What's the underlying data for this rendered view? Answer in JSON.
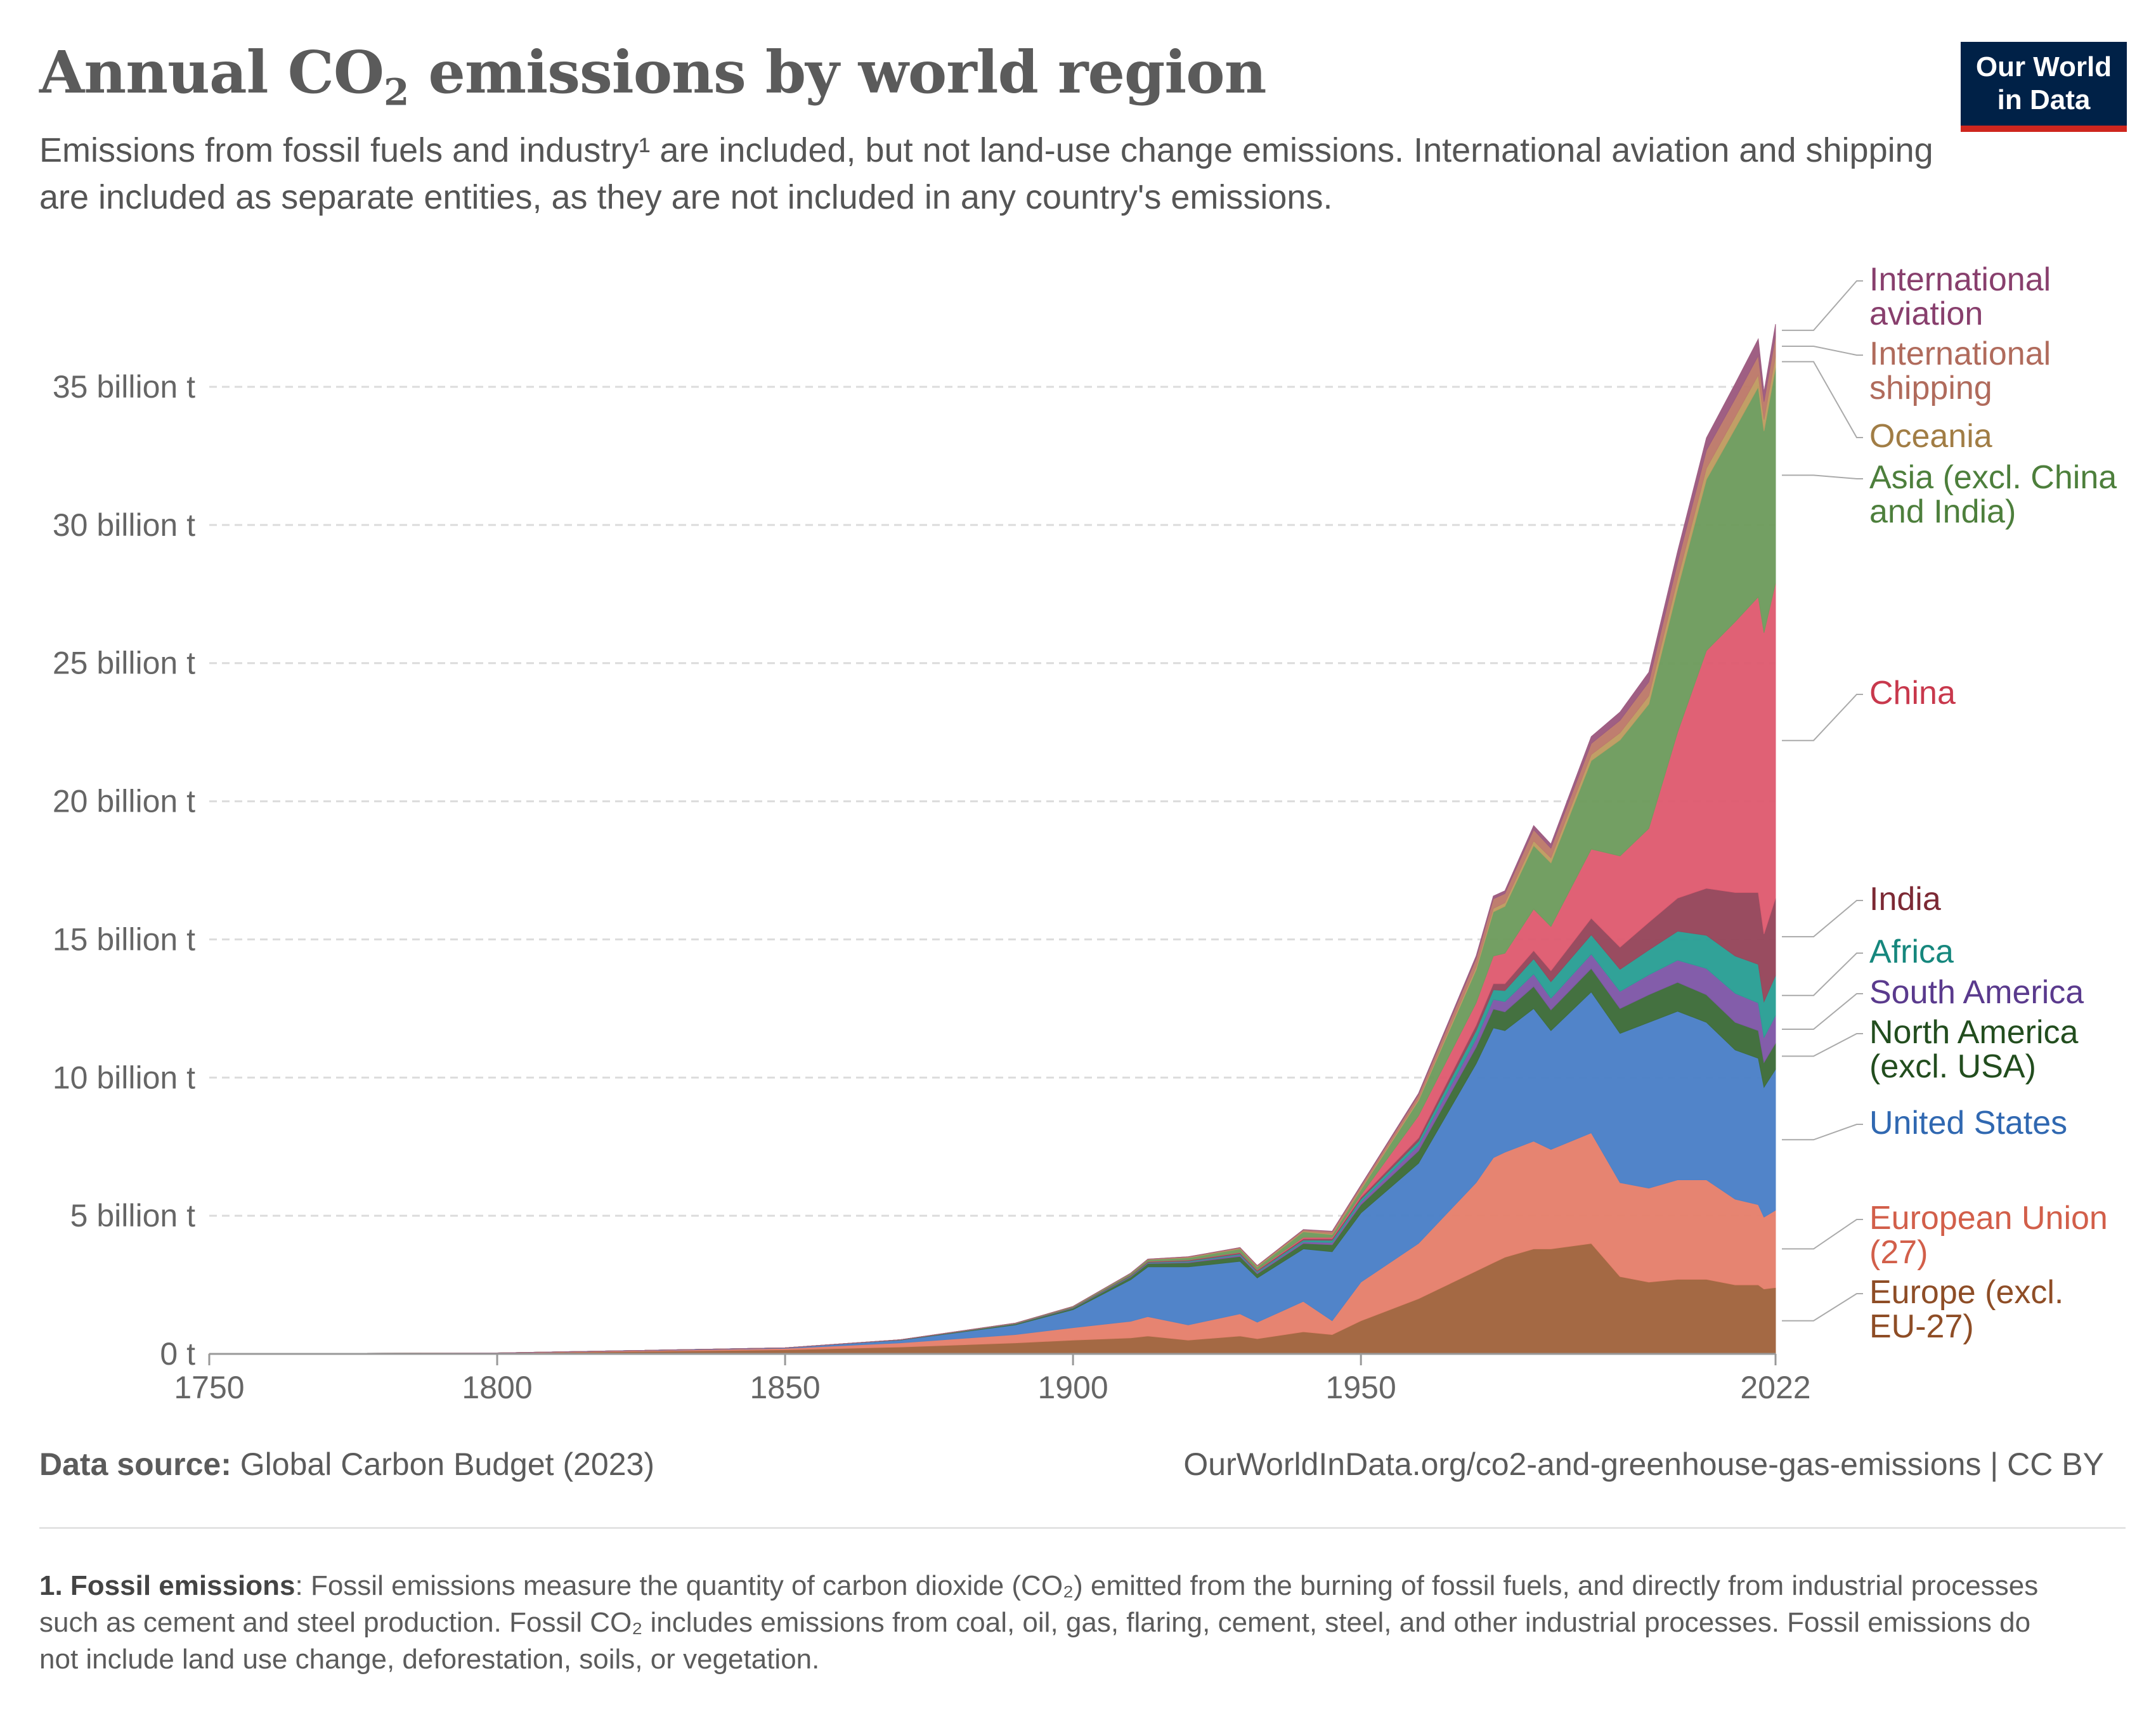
{
  "header": {
    "title_main": "Annual CO",
    "title_sub": "2",
    "title_rest": " emissions by world region",
    "subtitle": "Emissions from fossil fuels and industry¹ are included, but not land-use change emissions. International aviation and shipping are included as separate entities, as they are not included in any country's emissions.",
    "logo_line1": "Our World",
    "logo_line2": "in Data"
  },
  "footer": {
    "source_label": "Data source:",
    "source_text": " Global Carbon Budget (2023)",
    "url": "OurWorldInData.org/co2-and-greenhouse-gas-emissions | CC BY",
    "footnote_label": "1. Fossil emissions",
    "footnote_text": ": Fossil emissions measure the quantity of carbon dioxide (CO₂) emitted from the burning of fossil fuels, and directly from industrial processes such as cement and steel production. Fossil CO₂ includes emissions from coal, oil, gas, flaring, cement, steel, and other industrial processes. Fossil emissions do not include land use change, deforestation, soils, or vegetation."
  },
  "colors": {
    "logo_bg": "#002147",
    "logo_accent": "#ce261e"
  },
  "chart_data": {
    "type": "area",
    "stacked": true,
    "unit": "t",
    "x": [
      1750,
      1800,
      1850,
      1870,
      1890,
      1900,
      1910,
      1913,
      1920,
      1929,
      1932,
      1940,
      1945,
      1950,
      1960,
      1970,
      1973,
      1975,
      1980,
      1983,
      1990,
      1995,
      2000,
      2005,
      2010,
      2015,
      2019,
      2020,
      2022
    ],
    "series": [
      {
        "name": "Europe (excl. EU-27)",
        "color": "#a2653e",
        "values": [
          0.01,
          0.03,
          0.15,
          0.25,
          0.4,
          0.5,
          0.58,
          0.65,
          0.5,
          0.65,
          0.55,
          0.8,
          0.7,
          1.2,
          2.0,
          3.0,
          3.3,
          3.5,
          3.8,
          3.8,
          4.0,
          2.8,
          2.6,
          2.7,
          2.7,
          2.5,
          2.5,
          2.35,
          2.4
        ]
      },
      {
        "name": "European Union (27)",
        "color": "#e6816d",
        "values": [
          0.0,
          0.005,
          0.05,
          0.15,
          0.3,
          0.45,
          0.6,
          0.7,
          0.55,
          0.8,
          0.6,
          1.1,
          0.5,
          1.4,
          2.0,
          3.2,
          3.8,
          3.8,
          3.9,
          3.6,
          4.0,
          3.4,
          3.4,
          3.6,
          3.6,
          3.1,
          2.9,
          2.6,
          2.8
        ]
      },
      {
        "name": "United States",
        "color": "#4c81c8",
        "values": [
          0.0,
          0.0,
          0.02,
          0.1,
          0.35,
          0.65,
          1.5,
          1.8,
          2.1,
          1.9,
          1.6,
          1.9,
          2.5,
          2.5,
          2.9,
          4.3,
          4.7,
          4.4,
          4.8,
          4.3,
          5.1,
          5.4,
          6.0,
          6.1,
          5.7,
          5.4,
          5.3,
          4.7,
          5.1
        ]
      },
      {
        "name": "North America (excl. USA)",
        "color": "#3e6d3a",
        "values": [
          0.0,
          0.0,
          0.0,
          0.01,
          0.03,
          0.05,
          0.1,
          0.12,
          0.15,
          0.18,
          0.15,
          0.2,
          0.25,
          0.3,
          0.45,
          0.6,
          0.68,
          0.68,
          0.8,
          0.75,
          0.85,
          0.9,
          1.0,
          1.05,
          1.0,
          1.0,
          1.0,
          0.9,
          0.95
        ]
      },
      {
        "name": "South America",
        "color": "#7f58a8",
        "values": [
          0.0,
          0.0,
          0.0,
          0.0,
          0.005,
          0.01,
          0.02,
          0.02,
          0.03,
          0.05,
          0.05,
          0.06,
          0.08,
          0.1,
          0.2,
          0.3,
          0.35,
          0.37,
          0.45,
          0.42,
          0.52,
          0.62,
          0.72,
          0.8,
          0.95,
          1.05,
          1.0,
          0.9,
          1.0
        ]
      },
      {
        "name": "Africa",
        "color": "#2b9f95",
        "values": [
          0.0,
          0.0,
          0.0,
          0.0,
          0.005,
          0.01,
          0.02,
          0.02,
          0.03,
          0.04,
          0.04,
          0.06,
          0.08,
          0.1,
          0.15,
          0.3,
          0.35,
          0.4,
          0.55,
          0.6,
          0.7,
          0.8,
          0.9,
          1.05,
          1.2,
          1.35,
          1.4,
          1.3,
          1.45
        ]
      },
      {
        "name": "India",
        "color": "#96475b",
        "values": [
          0.0,
          0.0,
          0.0,
          0.005,
          0.01,
          0.02,
          0.03,
          0.03,
          0.03,
          0.04,
          0.04,
          0.05,
          0.06,
          0.07,
          0.12,
          0.2,
          0.22,
          0.25,
          0.3,
          0.4,
          0.6,
          0.8,
          1.0,
          1.2,
          1.7,
          2.3,
          2.6,
          2.45,
          2.8
        ]
      },
      {
        "name": "China",
        "color": "#df5c71",
        "values": [
          0.0,
          0.0,
          0.0,
          0.0,
          0.0,
          0.0,
          0.005,
          0.01,
          0.01,
          0.02,
          0.02,
          0.05,
          0.05,
          0.08,
          0.8,
          0.8,
          1.0,
          1.1,
          1.5,
          1.6,
          2.5,
          3.3,
          3.4,
          6.0,
          8.6,
          9.8,
          10.7,
          10.9,
          11.4
        ]
      },
      {
        "name": "Asia (excl. China and India)",
        "color": "#6f9c5e",
        "values": [
          0.0,
          0.0,
          0.0,
          0.0,
          0.01,
          0.02,
          0.05,
          0.06,
          0.08,
          0.12,
          0.1,
          0.2,
          0.1,
          0.2,
          0.55,
          1.2,
          1.6,
          1.7,
          2.3,
          2.3,
          3.2,
          4.2,
          4.5,
          5.2,
          6.2,
          7.0,
          7.6,
          7.3,
          7.8
        ]
      },
      {
        "name": "Oceania",
        "color": "#c09c62",
        "values": [
          0.0,
          0.0,
          0.0,
          0.0,
          0.005,
          0.01,
          0.01,
          0.01,
          0.015,
          0.02,
          0.02,
          0.025,
          0.03,
          0.04,
          0.06,
          0.1,
          0.12,
          0.13,
          0.17,
          0.18,
          0.22,
          0.26,
          0.3,
          0.35,
          0.4,
          0.42,
          0.43,
          0.41,
          0.42
        ]
      },
      {
        "name": "International shipping",
        "color": "#bd7a6b",
        "values": [
          0.0,
          0.0,
          0.0,
          0.0,
          0.0,
          0.0,
          0.005,
          0.01,
          0.02,
          0.03,
          0.03,
          0.05,
          0.08,
          0.1,
          0.15,
          0.3,
          0.35,
          0.33,
          0.4,
          0.35,
          0.4,
          0.45,
          0.5,
          0.6,
          0.65,
          0.65,
          0.7,
          0.65,
          0.7
        ]
      },
      {
        "name": "International aviation",
        "color": "#9c5a80",
        "values": [
          0.0,
          0.0,
          0.0,
          0.0,
          0.0,
          0.0,
          0.0,
          0.0,
          0.0,
          0.0,
          0.0,
          0.005,
          0.01,
          0.02,
          0.05,
          0.1,
          0.1,
          0.1,
          0.15,
          0.15,
          0.25,
          0.3,
          0.35,
          0.4,
          0.45,
          0.55,
          0.6,
          0.35,
          0.45
        ]
      }
    ],
    "y_ticks": [
      {
        "value": 0,
        "label": "0 t"
      },
      {
        "value": 5,
        "label": "5 billion t"
      },
      {
        "value": 10,
        "label": "10 billion t"
      },
      {
        "value": 15,
        "label": "15 billion t"
      },
      {
        "value": 20,
        "label": "20 billion t"
      },
      {
        "value": 25,
        "label": "25 billion t"
      },
      {
        "value": 30,
        "label": "30 billion t"
      },
      {
        "value": 35,
        "label": "35 billion t"
      }
    ],
    "x_ticks": [
      1750,
      1800,
      1850,
      1900,
      1950,
      2022
    ],
    "ylim": [
      0,
      35
    ],
    "xlim": [
      1750,
      2022
    ],
    "grid": true,
    "legend": "right, labels at end of stack",
    "label_lines": [
      [
        "International",
        "aviation"
      ],
      [
        "International",
        "shipping"
      ],
      [
        "Oceania"
      ],
      [
        "Asia (excl. China",
        "and India)"
      ],
      [
        "China"
      ],
      [
        "India"
      ],
      [
        "Africa"
      ],
      [
        "South America"
      ],
      [
        "North America",
        "(excl. USA)"
      ],
      [
        "United States"
      ],
      [
        "European Union",
        "(27)"
      ],
      [
        "Europe (excl.",
        "EU-27)"
      ]
    ],
    "label_colors": [
      "#883f6d",
      "#b06b5c",
      "#a17d45",
      "#4d7f3c",
      "#c8384c",
      "#7c2934",
      "#16877d",
      "#5a3a8d",
      "#224d1e",
      "#3068b1",
      "#d25f4a",
      "#8e4d26"
    ]
  }
}
